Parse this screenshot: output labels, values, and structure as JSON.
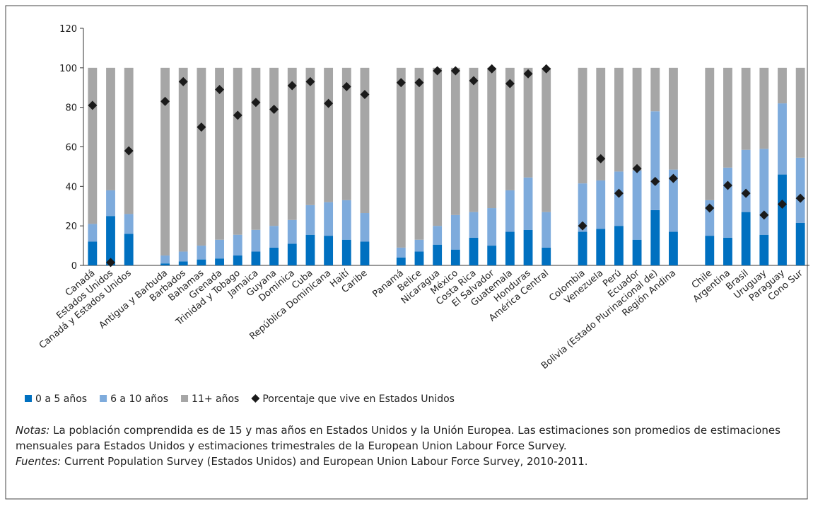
{
  "chart_data": {
    "type": "bar",
    "stacked": true,
    "categories": [
      "Canadá",
      "Estados Unidos",
      "Canadá y Estados Unidos",
      null,
      "Antigua y Barbuda",
      "Barbados",
      "Bahamas",
      "Grenada",
      "Trinidad y Tobago",
      "Jamaica",
      "Guyana",
      "Dominica",
      "Cuba",
      "República Dominicana",
      "Haití",
      "Caribe",
      null,
      "Panamá",
      "Belice",
      "Nicaragua",
      "México",
      "Costa Rica",
      "El Salvador",
      "Guatemala",
      "Honduras",
      "América Central",
      null,
      "Colombia",
      "Venezuela",
      "Perú",
      "Ecuador",
      "Bolivia (Estado Plurinacional de)",
      "Región Andina",
      null,
      "Chile",
      "Argentina",
      "Brasil",
      "Uruguay",
      "Paraguay",
      "Cono Sur"
    ],
    "series": [
      {
        "name": "0 a 5 años",
        "color": "#0070c0",
        "values": [
          12,
          25,
          16,
          null,
          1,
          2,
          3,
          3.5,
          5,
          7,
          9,
          11,
          15.5,
          15,
          13,
          12,
          null,
          4,
          7,
          10.5,
          8,
          14,
          10,
          17,
          18,
          9,
          null,
          17,
          18.5,
          20,
          13,
          28,
          17,
          null,
          15,
          14,
          27,
          15.5,
          46,
          21.5
        ]
      },
      {
        "name": "6 a 10 años",
        "color": "#7eabdc",
        "values": [
          9,
          13,
          10,
          null,
          4,
          5,
          7,
          9.5,
          10.5,
          11,
          11,
          12,
          15,
          17,
          20,
          14.5,
          null,
          5,
          6,
          9.5,
          17.5,
          13,
          19,
          21,
          26.5,
          18,
          null,
          24.5,
          24.5,
          27.5,
          35,
          50,
          31.5,
          null,
          18,
          35.5,
          31.5,
          43.5,
          36,
          33
        ]
      },
      {
        "name": "11+ años",
        "color": "#a6a6a6",
        "values": [
          79,
          62,
          74,
          null,
          95,
          93,
          90,
          87,
          84.5,
          82,
          80,
          77,
          69.5,
          68,
          67,
          73.5,
          null,
          91,
          87,
          80,
          74.5,
          73,
          71,
          62,
          55.5,
          73,
          null,
          58.5,
          57,
          52.5,
          52,
          22,
          51.5,
          null,
          67,
          50.5,
          41.5,
          41,
          18,
          45.5
        ]
      },
      {
        "name": "Porcentaje que vive en Estados Unidos",
        "type": "scatter",
        "color": "#1a1a1a",
        "values": [
          81,
          1.5,
          58,
          null,
          83,
          93,
          70,
          89,
          76,
          82.5,
          79,
          91,
          93,
          82,
          90.5,
          86.5,
          null,
          92.5,
          92.5,
          98.5,
          98.5,
          93.5,
          99.5,
          92,
          97,
          99.5,
          null,
          20,
          54,
          36.5,
          49,
          42.5,
          44,
          null,
          29,
          40.5,
          36.5,
          25.5,
          31,
          34
        ]
      }
    ],
    "ylim": [
      0,
      120
    ],
    "yticks": [
      0,
      20,
      40,
      60,
      80,
      100,
      120
    ],
    "notes": [
      {
        "label": "Notas:",
        "text": "La población comprendida es de 15 y mas años en Estados Unidos y la Unión Europea. Las estimaciones son promedios de estimaciones mensuales para Estados Unidos y estimaciones trimestrales de la European Union Labour Force Survey."
      },
      {
        "label": "Fuentes:",
        "text": "Current Population Survey (Estados Unidos) and European Union Labour Force Survey, 2010-2011."
      }
    ]
  }
}
